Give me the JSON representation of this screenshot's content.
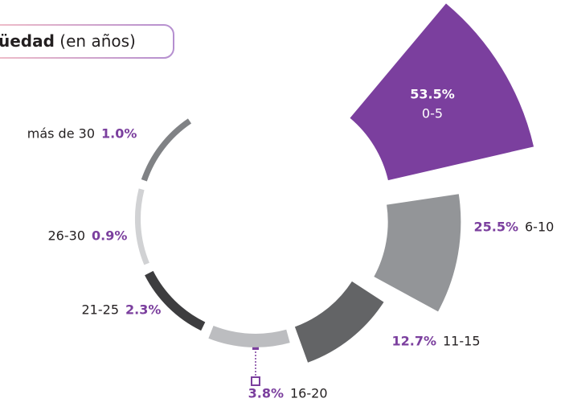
{
  "chart_data": {
    "type": "radial-bar",
    "title": [
      "üedad",
      "(en años)"
    ],
    "categories": [
      "0-5",
      "6-10",
      "11-15",
      "16-20",
      "21-25",
      "26-30",
      "más de 30"
    ],
    "values": [
      53.5,
      25.5,
      12.7,
      3.8,
      2.3,
      0.9,
      1.0
    ],
    "value_labels": [
      "53.5%",
      "25.5%",
      "12.7%",
      "3.8%",
      "2.3%",
      "0.9%",
      "1.0%"
    ],
    "colors": [
      "#7b3f9e",
      "#939598",
      "#636466",
      "#bcbdc0",
      "#3d3d3f",
      "#d1d2d4",
      "#808285"
    ],
    "label_color": "#7b3f9e"
  }
}
